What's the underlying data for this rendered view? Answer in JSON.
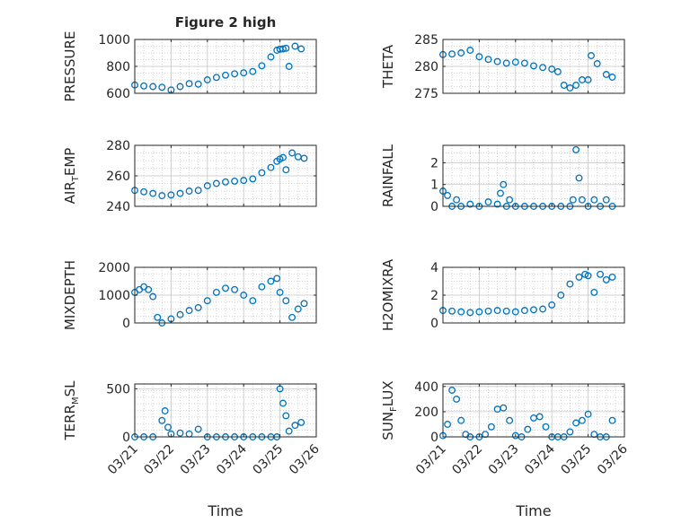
{
  "figure": {
    "title": "Figure 2 high",
    "xlabel": "Time"
  },
  "style": {
    "marker_color": "#0072BD",
    "axis_color": "#262626",
    "grid_color": "#c8c8c8"
  },
  "x_domain": [
    "03/21",
    "03/26"
  ],
  "x_ticks": [
    "03/21",
    "03/22",
    "03/23",
    "03/24",
    "03/25",
    "03/26"
  ],
  "chart_data": [
    {
      "type": "scatter",
      "ylabel": "PRESSURE",
      "ylim": [
        600,
        1000
      ],
      "yticks": [
        600,
        800,
        1000
      ],
      "yticklabels": [
        "600",
        "800",
        "1000"
      ],
      "title": "Figure 2 high",
      "grid": true,
      "x": [
        "03/21 00:00",
        "03/21 06:00",
        "03/21 12:00",
        "03/21 18:00",
        "03/22 00:00",
        "03/22 06:00",
        "03/22 12:00",
        "03/22 18:00",
        "03/23 00:00",
        "03/23 06:00",
        "03/23 12:00",
        "03/23 18:00",
        "03/24 00:00",
        "03/24 06:00",
        "03/24 12:00",
        "03/24 18:00",
        "03/24 22:00",
        "03/25 00:00",
        "03/25 02:00",
        "03/25 04:00",
        "03/25 06:00",
        "03/25 10:00",
        "03/25 14:00"
      ],
      "y": [
        662,
        655,
        650,
        645,
        625,
        650,
        672,
        668,
        700,
        718,
        735,
        745,
        752,
        762,
        805,
        870,
        920,
        928,
        930,
        935,
        800,
        950,
        930
      ]
    },
    {
      "type": "scatter",
      "ylabel": "THETA",
      "ylim": [
        275,
        285
      ],
      "yticks": [
        275,
        280,
        285
      ],
      "yticklabels": [
        "275",
        "280",
        "285"
      ],
      "grid": true,
      "x": [
        "03/21 00:00",
        "03/21 06:00",
        "03/21 12:00",
        "03/21 18:00",
        "03/22 00:00",
        "03/22 06:00",
        "03/22 12:00",
        "03/22 18:00",
        "03/23 00:00",
        "03/23 06:00",
        "03/23 12:00",
        "03/23 18:00",
        "03/24 00:00",
        "03/24 04:00",
        "03/24 08:00",
        "03/24 12:00",
        "03/24 16:00",
        "03/24 20:00",
        "03/25 00:00",
        "03/25 02:00",
        "03/25 06:00",
        "03/25 12:00",
        "03/25 16:00"
      ],
      "y": [
        282.2,
        282.3,
        282.5,
        283.0,
        281.8,
        281.3,
        280.9,
        280.6,
        280.8,
        280.6,
        280.1,
        279.8,
        279.5,
        279.0,
        276.5,
        276.0,
        276.5,
        277.5,
        277.5,
        282.0,
        280.5,
        278.5,
        278.0
      ]
    },
    {
      "type": "scatter",
      "ylabel": "AIR_TEMP",
      "ylim": [
        240,
        280
      ],
      "yticks": [
        240,
        260,
        280
      ],
      "yticklabels": [
        "240",
        "260",
        "280"
      ],
      "grid": true,
      "x": [
        "03/21 00:00",
        "03/21 06:00",
        "03/21 12:00",
        "03/21 18:00",
        "03/22 00:00",
        "03/22 06:00",
        "03/22 12:00",
        "03/22 18:00",
        "03/23 00:00",
        "03/23 06:00",
        "03/23 12:00",
        "03/23 18:00",
        "03/24 00:00",
        "03/24 06:00",
        "03/24 12:00",
        "03/24 18:00",
        "03/24 22:00",
        "03/25 00:00",
        "03/25 02:00",
        "03/25 04:00",
        "03/25 08:00",
        "03/25 12:00",
        "03/25 16:00"
      ],
      "y": [
        250.5,
        249.5,
        248.5,
        247.0,
        247.5,
        248.5,
        250.0,
        250.5,
        253.5,
        255.0,
        256.0,
        256.5,
        257.0,
        258.0,
        262.0,
        265.5,
        269.5,
        271.0,
        272.0,
        264.0,
        275.0,
        272.5,
        271.5
      ]
    },
    {
      "type": "scatter",
      "ylabel": "RAINFALL",
      "ylim": [
        0,
        2.8
      ],
      "yticks": [
        0,
        1,
        2
      ],
      "yticklabels": [
        "0",
        "1",
        "2"
      ],
      "grid": true,
      "x": [
        "03/21 00:00",
        "03/21 03:00",
        "03/21 06:00",
        "03/21 09:00",
        "03/21 12:00",
        "03/21 18:00",
        "03/22 00:00",
        "03/22 06:00",
        "03/22 12:00",
        "03/22 14:00",
        "03/22 16:00",
        "03/22 18:00",
        "03/22 20:00",
        "03/23 00:00",
        "03/23 06:00",
        "03/23 12:00",
        "03/23 18:00",
        "03/24 00:00",
        "03/24 06:00",
        "03/24 12:00",
        "03/24 14:00",
        "03/24 16:00",
        "03/24 18:00",
        "03/24 20:00",
        "03/25 00:00",
        "03/25 04:00",
        "03/25 08:00",
        "03/25 12:00",
        "03/25 16:00"
      ],
      "y": [
        0.7,
        0.5,
        0.0,
        0.3,
        0.0,
        0.1,
        0.0,
        0.2,
        0.1,
        0.6,
        1.0,
        0.0,
        0.3,
        0.0,
        0.0,
        0.0,
        0.0,
        0.0,
        0.0,
        0.0,
        0.3,
        2.6,
        1.3,
        0.3,
        0.0,
        0.3,
        0.0,
        0.3,
        0.0
      ]
    },
    {
      "type": "scatter",
      "ylabel": "MIXDEPTH",
      "ylim": [
        0,
        2000
      ],
      "yticks": [
        0,
        1000,
        2000
      ],
      "yticklabels": [
        "0",
        "1000",
        "2000"
      ],
      "grid": true,
      "x": [
        "03/21 00:00",
        "03/21 03:00",
        "03/21 06:00",
        "03/21 09:00",
        "03/21 12:00",
        "03/21 15:00",
        "03/21 18:00",
        "03/22 00:00",
        "03/22 06:00",
        "03/22 12:00",
        "03/22 18:00",
        "03/23 00:00",
        "03/23 06:00",
        "03/23 12:00",
        "03/23 18:00",
        "03/24 00:00",
        "03/24 06:00",
        "03/24 12:00",
        "03/24 18:00",
        "03/24 22:00",
        "03/25 00:00",
        "03/25 04:00",
        "03/25 08:00",
        "03/25 12:00",
        "03/25 16:00"
      ],
      "y": [
        1100,
        1200,
        1300,
        1200,
        950,
        200,
        0,
        150,
        300,
        450,
        550,
        800,
        1100,
        1250,
        1200,
        1000,
        800,
        1300,
        1500,
        1600,
        1100,
        800,
        200,
        500,
        700
      ]
    },
    {
      "type": "scatter",
      "ylabel": "H2OMIXRA",
      "ylim": [
        0,
        4
      ],
      "yticks": [
        0,
        2,
        4
      ],
      "yticklabels": [
        "0",
        "2",
        "4"
      ],
      "grid": true,
      "x": [
        "03/21 00:00",
        "03/21 06:00",
        "03/21 12:00",
        "03/21 18:00",
        "03/22 00:00",
        "03/22 06:00",
        "03/22 12:00",
        "03/22 18:00",
        "03/23 00:00",
        "03/23 06:00",
        "03/23 12:00",
        "03/23 18:00",
        "03/24 00:00",
        "03/24 06:00",
        "03/24 12:00",
        "03/24 18:00",
        "03/24 22:00",
        "03/25 00:00",
        "03/25 04:00",
        "03/25 08:00",
        "03/25 12:00",
        "03/25 16:00"
      ],
      "y": [
        0.9,
        0.85,
        0.8,
        0.75,
        0.8,
        0.85,
        0.9,
        0.85,
        0.8,
        0.9,
        0.95,
        1.0,
        1.3,
        2.0,
        2.8,
        3.3,
        3.5,
        3.4,
        2.2,
        3.5,
        3.1,
        3.3
      ]
    },
    {
      "type": "scatter",
      "ylabel": "TERR_MSL",
      "ylim": [
        0,
        550
      ],
      "yticks": [
        0,
        500
      ],
      "yticklabels": [
        "0",
        "500"
      ],
      "grid": true,
      "x": [
        "03/21 00:00",
        "03/21 06:00",
        "03/21 12:00",
        "03/21 18:00",
        "03/21 20:00",
        "03/21 22:00",
        "03/22 00:00",
        "03/22 06:00",
        "03/22 12:00",
        "03/22 18:00",
        "03/23 00:00",
        "03/23 06:00",
        "03/23 12:00",
        "03/23 18:00",
        "03/24 00:00",
        "03/24 06:00",
        "03/24 12:00",
        "03/24 18:00",
        "03/24 22:00",
        "03/25 00:00",
        "03/25 02:00",
        "03/25 04:00",
        "03/25 06:00",
        "03/25 10:00",
        "03/25 14:00"
      ],
      "y": [
        0,
        0,
        0,
        170,
        270,
        100,
        30,
        40,
        30,
        80,
        0,
        0,
        0,
        0,
        0,
        0,
        0,
        0,
        0,
        500,
        350,
        220,
        60,
        120,
        150
      ]
    },
    {
      "type": "scatter",
      "ylabel": "SUN_FLUX",
      "ylim": [
        0,
        420
      ],
      "yticks": [
        0,
        200,
        400
      ],
      "yticklabels": [
        "0",
        "200",
        "400"
      ],
      "grid": true,
      "x": [
        "03/21 00:00",
        "03/21 03:00",
        "03/21 06:00",
        "03/21 09:00",
        "03/21 12:00",
        "03/21 15:00",
        "03/21 18:00",
        "03/22 00:00",
        "03/22 04:00",
        "03/22 08:00",
        "03/22 12:00",
        "03/22 16:00",
        "03/22 20:00",
        "03/23 00:00",
        "03/23 04:00",
        "03/23 08:00",
        "03/23 12:00",
        "03/23 16:00",
        "03/23 20:00",
        "03/24 00:00",
        "03/24 04:00",
        "03/24 08:00",
        "03/24 12:00",
        "03/24 16:00",
        "03/24 20:00",
        "03/25 00:00",
        "03/25 04:00",
        "03/25 08:00",
        "03/25 12:00",
        "03/25 16:00"
      ],
      "y": [
        10,
        100,
        370,
        300,
        130,
        20,
        0,
        0,
        20,
        80,
        220,
        230,
        130,
        10,
        0,
        60,
        150,
        160,
        80,
        0,
        0,
        0,
        40,
        110,
        130,
        180,
        20,
        0,
        0,
        130
      ]
    }
  ]
}
